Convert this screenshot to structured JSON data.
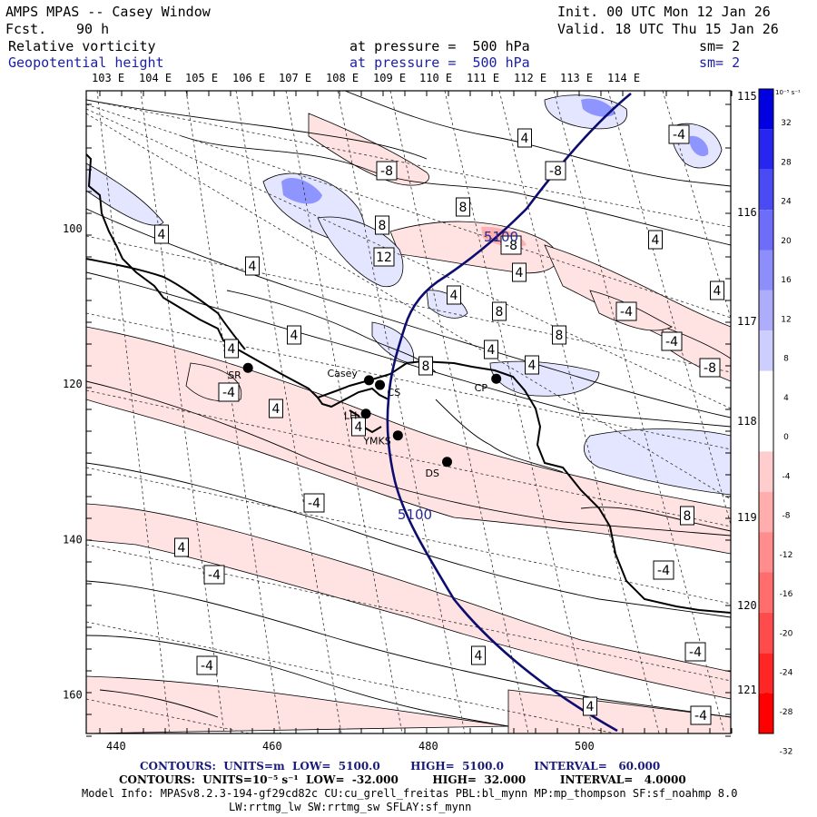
{
  "header": {
    "title": "AMPS MPAS -- Casey Window",
    "fcst_label": "Fcst.",
    "fcst_value": "90 h",
    "init": "Init. 00 UTC Mon 12 Jan 26",
    "valid": "Valid. 18 UTC Thu 15 Jan 26",
    "field1": {
      "name": "Relative vorticity",
      "level": "at pressure =  500 hPa",
      "sm": "sm= 2"
    },
    "field2": {
      "name": "Geopotential height",
      "level": "at pressure =  500 hPa",
      "sm": "sm= 2"
    }
  },
  "axes": {
    "top_lon": [
      "103 E",
      "104 E",
      "105 E",
      "106 E",
      "107 E",
      "108 E",
      "109 E",
      "110 E",
      "111 E",
      "112 E",
      "113 E",
      "114 E"
    ],
    "right_lat": [
      "115 E",
      "116 E",
      "117 E",
      "118 E",
      "119 E",
      "120 E",
      "121 E"
    ],
    "bottom_x": [
      "440",
      "460",
      "480",
      "500"
    ],
    "left_y": [
      "100",
      "120",
      "140",
      "160"
    ]
  },
  "colorbar": {
    "unit": "10⁻⁵ s⁻¹",
    "ticks": [
      "32",
      "28",
      "24",
      "20",
      "16",
      "12",
      "8",
      "4",
      "0",
      "-4",
      "-8",
      "-12",
      "-16",
      "-20",
      "-24",
      "-28",
      "-32"
    ]
  },
  "stations": [
    {
      "id": "SR",
      "x": 457,
      "y": 117.9
    },
    {
      "id": "Casey",
      "x": 472.5,
      "y": 119.5
    },
    {
      "id": "CS",
      "x": 473.9,
      "y": 120.1
    },
    {
      "id": "LH",
      "x": 472.1,
      "y": 123.8
    },
    {
      "id": "YMKS",
      "x": 476.2,
      "y": 126.6
    },
    {
      "id": "DS",
      "x": 482.5,
      "y": 130
    },
    {
      "id": "CP",
      "x": 488.8,
      "y": 119.3
    }
  ],
  "contour_labels": {
    "height": [
      "5100",
      "5100"
    ],
    "vorticity": [
      "4",
      "-8",
      "-8",
      "8",
      "8",
      "12",
      "-8",
      "4",
      "4",
      "4",
      "4",
      "8",
      "4",
      "-4",
      "4",
      "8",
      "4",
      "-4",
      "4",
      "-8",
      "4",
      "4",
      "8",
      "-4",
      "4",
      "-4",
      "4",
      "-4",
      "-4",
      "8",
      "4",
      "-4",
      "-4",
      "4",
      "-4",
      "-4",
      "4"
    ]
  },
  "footer": {
    "line1": "CONTOURS:  UNITS=m  LOW=  5100.0        HIGH=  5100.0        INTERVAL=   60.000",
    "line2": "CONTOURS:  UNITS=10⁻⁵ s⁻¹  LOW=  -32.000         HIGH=  32.000         INTERVAL=   4.0000",
    "line3": "Model Info: MPASv8.2.3-194-gf29cd82c CU:cu_grell_freitas PBL:bl_mynn MP:mp_thompson SF:sf_noahmp 8.0",
    "line4": "LW:rrtmg_lw SW:rrtmg_sw SFLAY:sf_mynn"
  },
  "colors": {
    "positive": "#2020ff",
    "negative": "#ff2020",
    "height_contour": "#0d0d70"
  }
}
